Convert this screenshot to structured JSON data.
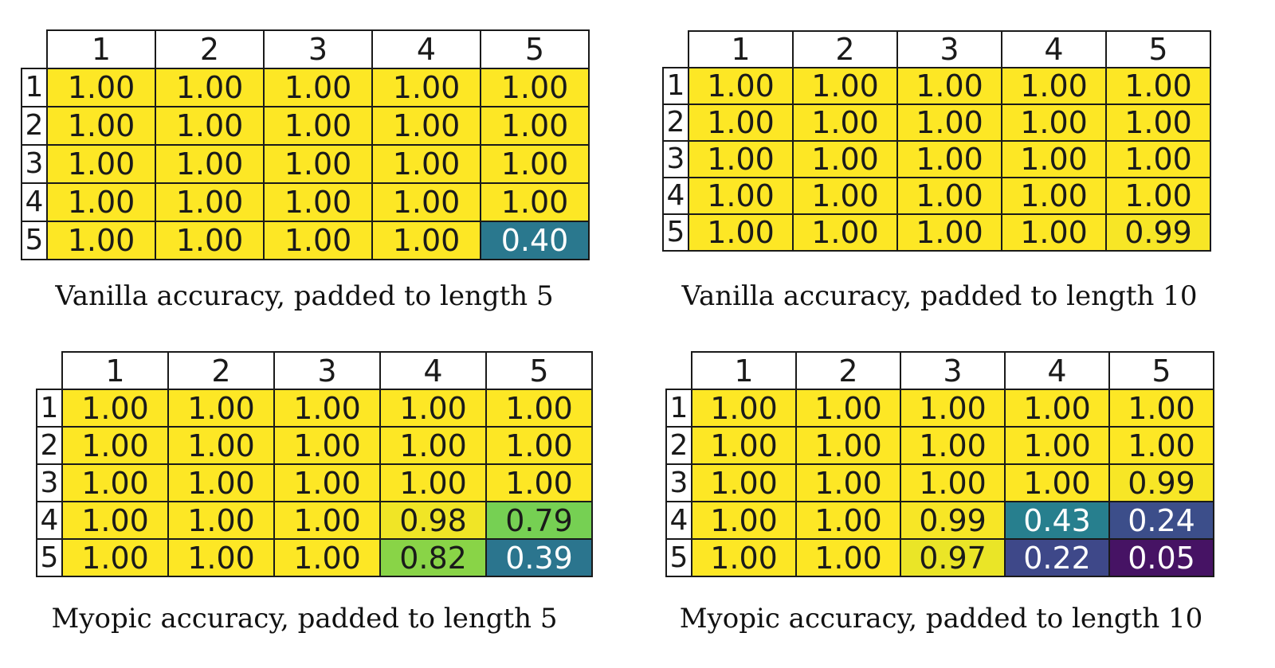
{
  "chart_data": [
    {
      "type": "heatmap",
      "title": "Vanilla accuracy, padded to length 5",
      "columns": [
        "1",
        "2",
        "3",
        "4",
        "5"
      ],
      "rows": [
        "1",
        "2",
        "3",
        "4",
        "5"
      ],
      "values": [
        [
          "1.00",
          "1.00",
          "1.00",
          "1.00",
          "1.00"
        ],
        [
          "1.00",
          "1.00",
          "1.00",
          "1.00",
          "1.00"
        ],
        [
          "1.00",
          "1.00",
          "1.00",
          "1.00",
          "1.00"
        ],
        [
          "1.00",
          "1.00",
          "1.00",
          "1.00",
          "1.00"
        ],
        [
          "1.00",
          "1.00",
          "1.00",
          "1.00",
          "0.40"
        ]
      ]
    },
    {
      "type": "heatmap",
      "title": "Vanilla accuracy, padded to length 10",
      "columns": [
        "1",
        "2",
        "3",
        "4",
        "5"
      ],
      "rows": [
        "1",
        "2",
        "3",
        "4",
        "5"
      ],
      "values": [
        [
          "1.00",
          "1.00",
          "1.00",
          "1.00",
          "1.00"
        ],
        [
          "1.00",
          "1.00",
          "1.00",
          "1.00",
          "1.00"
        ],
        [
          "1.00",
          "1.00",
          "1.00",
          "1.00",
          "1.00"
        ],
        [
          "1.00",
          "1.00",
          "1.00",
          "1.00",
          "1.00"
        ],
        [
          "1.00",
          "1.00",
          "1.00",
          "1.00",
          "0.99"
        ]
      ]
    },
    {
      "type": "heatmap",
      "title": "Myopic accuracy, padded to length 5",
      "columns": [
        "1",
        "2",
        "3",
        "4",
        "5"
      ],
      "rows": [
        "1",
        "2",
        "3",
        "4",
        "5"
      ],
      "values": [
        [
          "1.00",
          "1.00",
          "1.00",
          "1.00",
          "1.00"
        ],
        [
          "1.00",
          "1.00",
          "1.00",
          "1.00",
          "1.00"
        ],
        [
          "1.00",
          "1.00",
          "1.00",
          "1.00",
          "1.00"
        ],
        [
          "1.00",
          "1.00",
          "1.00",
          "0.98",
          "0.79"
        ],
        [
          "1.00",
          "1.00",
          "1.00",
          "0.82",
          "0.39"
        ]
      ]
    },
    {
      "type": "heatmap",
      "title": "Myopic accuracy, padded to length 10",
      "columns": [
        "1",
        "2",
        "3",
        "4",
        "5"
      ],
      "rows": [
        "1",
        "2",
        "3",
        "4",
        "5"
      ],
      "values": [
        [
          "1.00",
          "1.00",
          "1.00",
          "1.00",
          "1.00"
        ],
        [
          "1.00",
          "1.00",
          "1.00",
          "1.00",
          "1.00"
        ],
        [
          "1.00",
          "1.00",
          "1.00",
          "1.00",
          "0.99"
        ],
        [
          "1.00",
          "1.00",
          "0.99",
          "0.43",
          "0.24"
        ],
        [
          "1.00",
          "1.00",
          "0.97",
          "0.22",
          "0.05"
        ]
      ]
    }
  ],
  "colormap": {
    "name": "viridis",
    "stops": [
      "#440154",
      "#482878",
      "#3e4989",
      "#31688e",
      "#26828e",
      "#1f9e89",
      "#35b779",
      "#6ece58",
      "#b5de2b",
      "#fde725"
    ],
    "text_dark": "#1a1a1a",
    "text_light": "#ffffff"
  }
}
